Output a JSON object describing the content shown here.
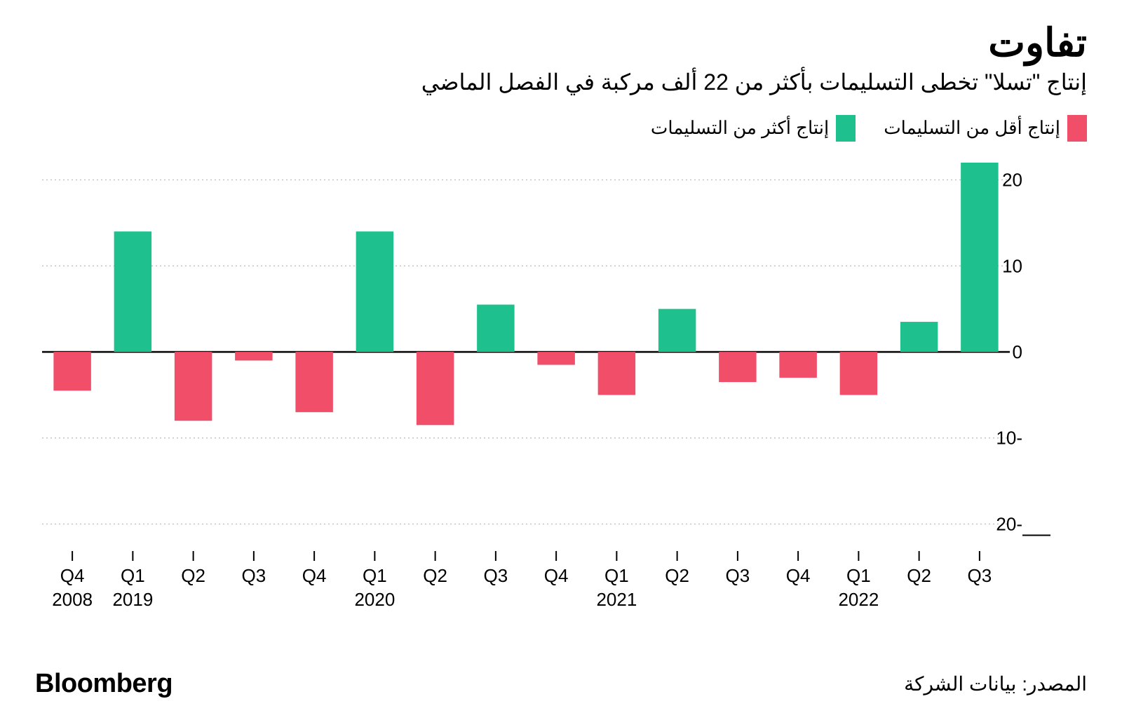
{
  "title": "تفاوت",
  "subtitle": "إنتاج \"تسلا\" تخطى التسليمات بأكثر من 22 ألف مركبة في الفصل الماضي",
  "legend": [
    {
      "label": "إنتاج أقل من التسليمات",
      "color": "#f04e69"
    },
    {
      "label": "إنتاج أكثر من التسليمات",
      "color": "#1ec18d"
    }
  ],
  "source_label": "المصدر: بيانات الشركة",
  "brand": "Bloomberg",
  "chart": {
    "type": "bar",
    "ylim": [
      -22,
      22
    ],
    "yticks": [
      {
        "v": 20,
        "label": "20 ألف"
      },
      {
        "v": 10,
        "label": "10"
      },
      {
        "v": 0,
        "label": "0"
      },
      {
        "v": -10,
        "label": "-10"
      },
      {
        "v": -20,
        "label": "-20"
      }
    ],
    "gridline_color": "#b8b8b8",
    "gridline_dash": "2,4",
    "zero_line_color": "#000000",
    "bar_width_ratio": 0.62,
    "colors": {
      "positive": "#1ec18d",
      "negative": "#f04e69"
    },
    "series": [
      {
        "q": "Q4",
        "year": "2008",
        "value": -4.5
      },
      {
        "q": "Q1",
        "year": "2019",
        "value": 14.0
      },
      {
        "q": "Q2",
        "year": "",
        "value": -8.0
      },
      {
        "q": "Q3",
        "year": "",
        "value": -1.0
      },
      {
        "q": "Q4",
        "year": "",
        "value": -7.0
      },
      {
        "q": "Q1",
        "year": "2020",
        "value": 14.0
      },
      {
        "q": "Q2",
        "year": "",
        "value": -8.5
      },
      {
        "q": "Q3",
        "year": "",
        "value": 5.5
      },
      {
        "q": "Q4",
        "year": "",
        "value": -1.5
      },
      {
        "q": "Q1",
        "year": "2021",
        "value": -5.0
      },
      {
        "q": "Q2",
        "year": "",
        "value": 5.0
      },
      {
        "q": "Q3",
        "year": "",
        "value": -3.5
      },
      {
        "q": "Q4",
        "year": "",
        "value": -3.0
      },
      {
        "q": "Q1",
        "year": "2022",
        "value": -5.0
      },
      {
        "q": "Q2",
        "year": "",
        "value": 3.5
      },
      {
        "q": "Q3",
        "year": "",
        "value": 22.0
      }
    ],
    "plot_background": "#ffffff",
    "label_fontsize": 26,
    "tick_len": 14,
    "tick_color": "#000000"
  }
}
